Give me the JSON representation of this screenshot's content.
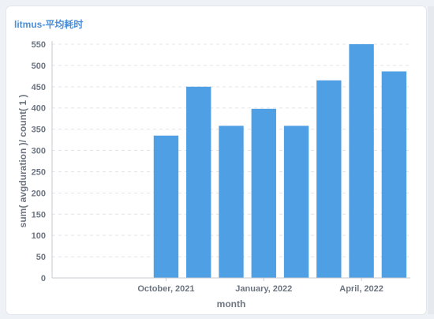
{
  "card": {
    "title": "litmus-平均耗时"
  },
  "colors": {
    "bar": "#4f9fe5",
    "grid": "#e1e5ea",
    "axis": "#c4c9d0",
    "text": "#6d7581",
    "title": "#4c8fd6"
  },
  "chart_data": {
    "type": "bar",
    "xlabel": "month",
    "ylabel": "sum( avgduration )/ count( 1 )",
    "ylim": [
      0,
      550
    ],
    "yticks": [
      0,
      50,
      100,
      150,
      200,
      250,
      300,
      350,
      400,
      450,
      500,
      550
    ],
    "categories": [
      "2021-07",
      "2021-08",
      "2021-09",
      "2021-10",
      "2021-11",
      "2021-12",
      "2022-01",
      "2022-02",
      "2022-03",
      "2022-04",
      "2022-05"
    ],
    "values": [
      0,
      0,
      0,
      335,
      450,
      358,
      398,
      358,
      465,
      550,
      486
    ],
    "xtick_labels": [
      {
        "category_index": 3,
        "label": "October, 2021"
      },
      {
        "category_index": 6,
        "label": "January, 2022"
      },
      {
        "category_index": 9,
        "label": "April, 2022"
      }
    ],
    "grid": true,
    "legend": "none"
  }
}
